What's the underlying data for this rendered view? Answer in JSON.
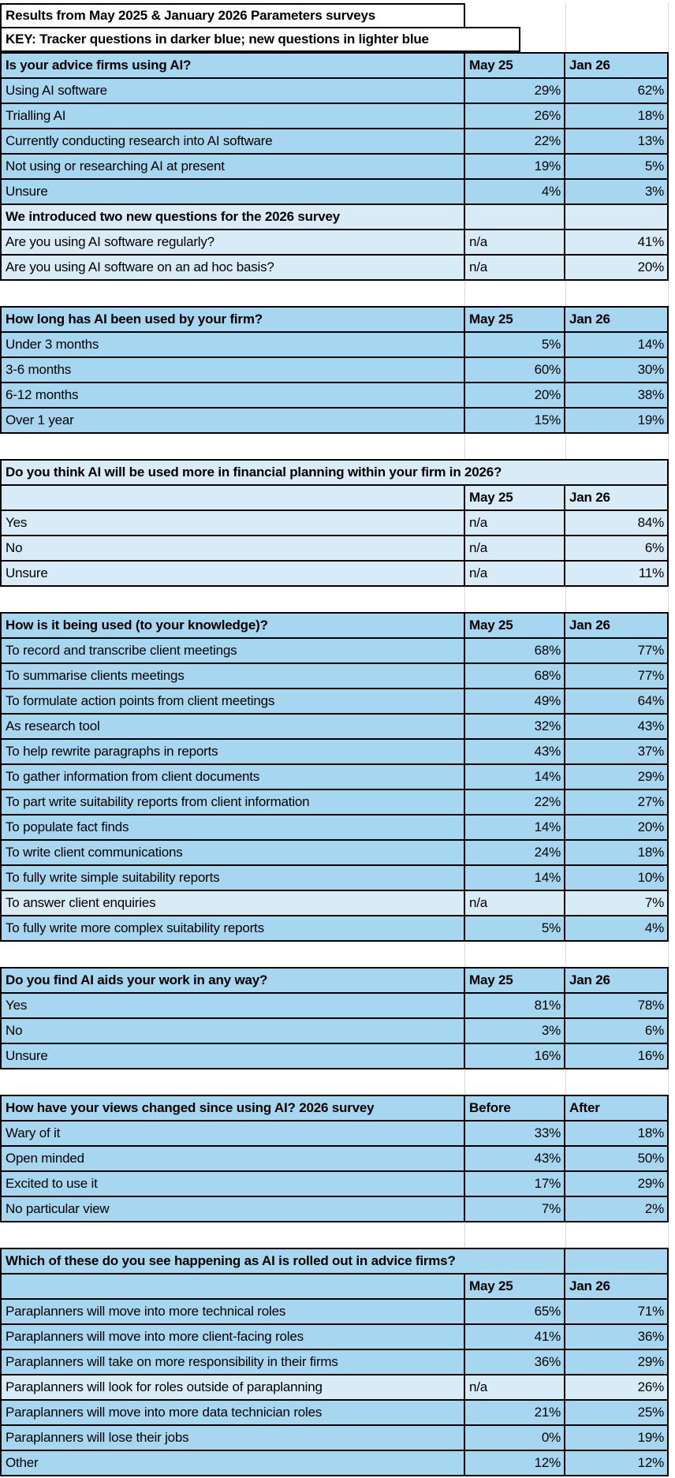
{
  "titles": {
    "results": "Results from May 2025 & January 2026 Parameters surveys",
    "key": "KEY: Tracker questions in darker blue; new questions in lighter blue"
  },
  "colors": {
    "tracker_blue": "#A7D7F0",
    "new_blue": "#D8ECF8",
    "border": "#000000",
    "faint_grid": "#D9D9D9"
  },
  "sections": [
    {
      "title": "Is your advice firms using AI?",
      "col1": "May 25",
      "col2": "Jan 26",
      "style": "tracker",
      "header_layout": "inline",
      "rows": [
        {
          "label": "Using AI software",
          "v1": "29%",
          "v2": "62%",
          "style": "tracker"
        },
        {
          "label": "Trialling AI",
          "v1": "26%",
          "v2": "18%",
          "style": "tracker"
        },
        {
          "label": "Currently conducting research into AI software",
          "v1": "22%",
          "v2": "13%",
          "style": "tracker"
        },
        {
          "label": "Not using or researching AI at present",
          "v1": "19%",
          "v2": "5%",
          "style": "tracker"
        },
        {
          "label": "Unsure",
          "v1": "4%",
          "v2": "3%",
          "style": "tracker"
        },
        {
          "label": "We introduced two new questions for the 2026 survey",
          "v1": "",
          "v2": "",
          "style": "new",
          "bold": true
        },
        {
          "label": "Are you using AI software regularly?",
          "v1": "n/a",
          "v2": "41%",
          "style": "new"
        },
        {
          "label": "Are you using AI software on an ad hoc basis?",
          "v1": "n/a",
          "v2": "20%",
          "style": "new"
        }
      ]
    },
    {
      "title": "How long has AI been used by your firm?",
      "col1": "May 25",
      "col2": "Jan 26",
      "style": "tracker",
      "header_layout": "inline",
      "rows": [
        {
          "label": "Under 3 months",
          "v1": "5%",
          "v2": "14%",
          "style": "tracker"
        },
        {
          "label": "3-6 months",
          "v1": "60%",
          "v2": "30%",
          "style": "tracker"
        },
        {
          "label": "6-12 months",
          "v1": "20%",
          "v2": "38%",
          "style": "tracker"
        },
        {
          "label": "Over 1 year",
          "v1": "15%",
          "v2": "19%",
          "style": "tracker"
        }
      ]
    },
    {
      "title": "Do you think AI will be used more in financial planning within your firm in 2026?",
      "col1": "May 25",
      "col2": "Jan 26",
      "style": "new",
      "header_layout": "fullwidth",
      "subheader": true,
      "rows": [
        {
          "label": "Yes",
          "v1": "n/a",
          "v2": "84%",
          "style": "new"
        },
        {
          "label": "No",
          "v1": "n/a",
          "v2": "6%",
          "style": "new"
        },
        {
          "label": "Unsure",
          "v1": "n/a",
          "v2": "11%",
          "style": "new"
        }
      ]
    },
    {
      "title": "How is it being used (to your knowledge)?",
      "col1": "May 25",
      "col2": "Jan 26",
      "style": "tracker",
      "header_layout": "inline",
      "rows": [
        {
          "label": "To record and transcribe client meetings",
          "v1": "68%",
          "v2": "77%",
          "style": "tracker"
        },
        {
          "label": "To summarise clients meetings",
          "v1": "68%",
          "v2": "77%",
          "style": "tracker"
        },
        {
          "label": "To formulate action points from client meetings",
          "v1": "49%",
          "v2": "64%",
          "style": "tracker"
        },
        {
          "label": "As research tool",
          "v1": "32%",
          "v2": "43%",
          "style": "tracker"
        },
        {
          "label": "To help rewrite paragraphs in reports",
          "v1": "43%",
          "v2": "37%",
          "style": "tracker"
        },
        {
          "label": "To gather information from client documents",
          "v1": "14%",
          "v2": "29%",
          "style": "tracker"
        },
        {
          "label": "To part write suitability reports from client information",
          "v1": "22%",
          "v2": "27%",
          "style": "tracker"
        },
        {
          "label": "To populate fact finds",
          "v1": "14%",
          "v2": "20%",
          "style": "tracker"
        },
        {
          "label": "To write client communications",
          "v1": "24%",
          "v2": "18%",
          "style": "tracker"
        },
        {
          "label": "To fully write simple suitability reports",
          "v1": "14%",
          "v2": "10%",
          "style": "tracker"
        },
        {
          "label": "To answer client enquiries",
          "v1": "n/a",
          "v2": "7%",
          "style": "new"
        },
        {
          "label": "To fully write more complex suitability reports",
          "v1": "5%",
          "v2": "4%",
          "style": "tracker"
        }
      ]
    },
    {
      "title": "Do you find AI aids your work in any way?",
      "col1": "May 25",
      "col2": "Jan 26",
      "style": "tracker",
      "header_layout": "inline",
      "rows": [
        {
          "label": "Yes",
          "v1": "81%",
          "v2": "78%",
          "style": "tracker"
        },
        {
          "label": "No",
          "v1": "3%",
          "v2": "6%",
          "style": "tracker"
        },
        {
          "label": "Unsure",
          "v1": "16%",
          "v2": "16%",
          "style": "tracker"
        }
      ]
    },
    {
      "title": "How have your views changed since using AI? 2026 survey",
      "col1": "Before",
      "col2": "After",
      "style": "tracker",
      "header_layout": "inline",
      "rows": [
        {
          "label": "Wary of it",
          "v1": "33%",
          "v2": "18%",
          "style": "tracker"
        },
        {
          "label": "Open minded",
          "v1": "43%",
          "v2": "50%",
          "style": "tracker"
        },
        {
          "label": "Excited to use it",
          "v1": "17%",
          "v2": "29%",
          "style": "tracker"
        },
        {
          "label": "No particular view",
          "v1": "7%",
          "v2": "2%",
          "style": "tracker"
        }
      ]
    },
    {
      "title": "Which of these do you see happening as AI is rolled out in advice firms?",
      "col1": "May 25",
      "col2": "Jan 26",
      "style": "tracker",
      "header_layout": "merged-left",
      "subheader": true,
      "rows": [
        {
          "label": "Paraplanners will move into more technical roles",
          "v1": "65%",
          "v2": "71%",
          "style": "tracker"
        },
        {
          "label": "Paraplanners will move into more client-facing roles",
          "v1": "41%",
          "v2": "36%",
          "style": "tracker"
        },
        {
          "label": "Paraplanners will take on more responsibility in their firms",
          "v1": "36%",
          "v2": "29%",
          "style": "tracker"
        },
        {
          "label": "Paraplanners will look for roles outside of paraplanning",
          "v1": "n/a",
          "v2": "26%",
          "style": "new"
        },
        {
          "label": "Paraplanners will move into more data technician roles",
          "v1": "21%",
          "v2": "25%",
          "style": "tracker"
        },
        {
          "label": "Paraplanners will lose their jobs",
          "v1": "0%",
          "v2": "19%",
          "style": "tracker"
        },
        {
          "label": "Other",
          "v1": "12%",
          "v2": "12%",
          "style": "tracker"
        }
      ]
    }
  ]
}
